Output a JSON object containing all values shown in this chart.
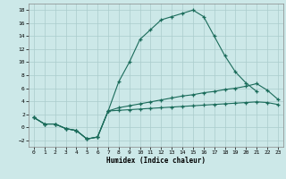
{
  "xlabel": "Humidex (Indice chaleur)",
  "xlim": [
    -0.5,
    23.5
  ],
  "ylim": [
    -3,
    19
  ],
  "bg_color": "#cce8e8",
  "grid_color": "#aacccc",
  "line_color": "#1a6b5a",
  "series1_x": [
    0,
    1,
    2,
    3,
    4,
    5,
    6,
    7,
    8,
    9,
    10,
    11,
    12,
    13,
    14,
    15,
    16,
    17,
    18,
    19,
    20,
    21
  ],
  "series1_y": [
    1.5,
    0.5,
    0.5,
    -0.2,
    -0.5,
    -1.8,
    -1.5,
    2.5,
    7.0,
    10.0,
    13.5,
    15.0,
    16.5,
    17.0,
    17.5,
    18.0,
    17.0,
    14.0,
    11.0,
    8.5,
    6.8,
    5.5
  ],
  "series2_x": [
    0,
    1,
    2,
    3,
    4,
    5,
    6,
    7,
    8,
    9,
    10,
    11,
    12,
    13,
    14,
    15,
    16,
    17,
    18,
    19,
    20,
    21,
    22,
    23
  ],
  "series2_y": [
    1.5,
    0.5,
    0.5,
    -0.2,
    -0.5,
    -1.8,
    -1.5,
    2.5,
    3.0,
    3.3,
    3.6,
    3.9,
    4.2,
    4.5,
    4.8,
    5.0,
    5.3,
    5.5,
    5.8,
    6.0,
    6.3,
    6.7,
    5.7,
    4.3
  ],
  "series3_x": [
    0,
    1,
    2,
    3,
    4,
    5,
    6,
    7,
    8,
    9,
    10,
    11,
    12,
    13,
    14,
    15,
    16,
    17,
    18,
    19,
    20,
    21,
    22,
    23
  ],
  "series3_y": [
    1.5,
    0.5,
    0.5,
    -0.2,
    -0.5,
    -1.8,
    -1.5,
    2.5,
    2.6,
    2.7,
    2.8,
    2.9,
    3.0,
    3.1,
    3.2,
    3.3,
    3.4,
    3.5,
    3.6,
    3.7,
    3.8,
    3.9,
    3.8,
    3.5
  ],
  "yticks": [
    -2,
    0,
    2,
    4,
    6,
    8,
    10,
    12,
    14,
    16,
    18
  ],
  "xticks": [
    0,
    1,
    2,
    3,
    4,
    5,
    6,
    7,
    8,
    9,
    10,
    11,
    12,
    13,
    14,
    15,
    16,
    17,
    18,
    19,
    20,
    21,
    22,
    23
  ]
}
